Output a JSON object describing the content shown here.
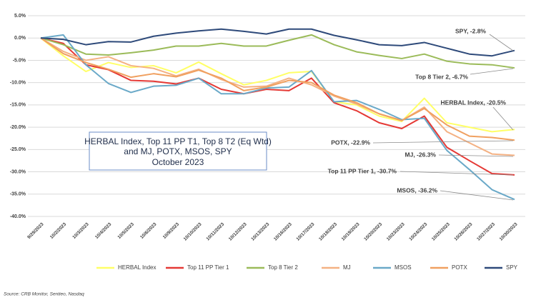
{
  "chart_data": {
    "type": "line",
    "title": [
      "HERBAL Index, Top 11 PP T1, Top 8 T2  (Eq Wtd)",
      "and MJ, POTX, MSOS, SPY",
      "October 2023"
    ],
    "source": "Source: CRB Monitor, Sentieo, Nasdaq",
    "categories": [
      "9/29/2023",
      "10/2/2023",
      "10/3/2023",
      "10/4/2023",
      "10/5/2023",
      "10/6/2023",
      "10/9/2023",
      "10/10/2023",
      "10/11/2023",
      "10/12/2023",
      "10/13/2023",
      "10/16/2023",
      "10/17/2023",
      "10/18/2023",
      "10/19/2023",
      "10/20/2023",
      "10/23/2023",
      "10/24/2023",
      "10/25/2023",
      "10/26/2023",
      "10/27/2023",
      "10/30/2023"
    ],
    "ylim": [
      -40,
      5
    ],
    "yticks": [
      {
        "value": 5,
        "label": "5.0%"
      },
      {
        "value": 0,
        "label": "0.0%"
      },
      {
        "value": -5,
        "label": "-5.0%"
      },
      {
        "value": -10,
        "label": "-10.0%"
      },
      {
        "value": -15,
        "label": "-15.0%"
      },
      {
        "value": -20,
        "label": "-20.0%"
      },
      {
        "value": -25,
        "label": "-25.0%"
      },
      {
        "value": -30,
        "label": "-30.0%"
      },
      {
        "value": -35,
        "label": "-35.0%"
      },
      {
        "value": -40,
        "label": "-40.0%"
      }
    ],
    "grid": true,
    "series": [
      {
        "name": "HERBAL Index",
        "color": "#ffff66",
        "values": [
          0,
          -4.0,
          -7.5,
          -5.5,
          -6.6,
          -6.2,
          -7.8,
          -5.4,
          -8.0,
          -10.5,
          -9.5,
          -7.8,
          -7.5,
          -14.3,
          -15.0,
          -17.5,
          -18.7,
          -13.5,
          -19.0,
          -20.0,
          -21.0,
          -20.5
        ]
      },
      {
        "name": "Top 11 PP Tier 1",
        "color": "#e53935",
        "values": [
          0,
          -1.2,
          -6.0,
          -7.1,
          -9.5,
          -9.7,
          -10.3,
          -9.0,
          -11.5,
          -12.5,
          -11.5,
          -11.8,
          -9.0,
          -14.5,
          -16.3,
          -19.0,
          -20.3,
          -17.5,
          -24.5,
          -27.5,
          -30.4,
          -30.7
        ]
      },
      {
        "name": "Top 8 Tier 2",
        "color": "#9bbb59",
        "values": [
          0,
          -1.5,
          -3.6,
          -3.8,
          -3.3,
          -2.7,
          -1.8,
          -1.8,
          -1.2,
          -1.8,
          -1.8,
          -0.5,
          0.7,
          -1.5,
          -3.1,
          -3.9,
          -4.6,
          -3.6,
          -5.2,
          -5.8,
          -6.0,
          -6.7
        ]
      },
      {
        "name": "MJ",
        "color": "#f4b183",
        "values": [
          0,
          -3.0,
          -5.0,
          -4.2,
          -6.2,
          -6.8,
          -8.5,
          -7.0,
          -9.3,
          -11.0,
          -10.8,
          -9.0,
          -10.5,
          -13.0,
          -14.8,
          -17.0,
          -18.5,
          -15.5,
          -21.0,
          -23.5,
          -26.0,
          -26.3
        ]
      },
      {
        "name": "MSOS",
        "color": "#6aa9c8",
        "values": [
          0,
          0.7,
          -6.0,
          -10.2,
          -12.2,
          -10.8,
          -10.6,
          -9.0,
          -12.5,
          -12.5,
          -11.2,
          -11.0,
          -7.3,
          -14.3,
          -14.0,
          -16.0,
          -18.3,
          -18.0,
          -25.2,
          -29.5,
          -34.0,
          -36.2
        ]
      },
      {
        "name": "POTX",
        "color": "#f0a060",
        "values": [
          0,
          -3.5,
          -5.5,
          -7.0,
          -8.8,
          -8.0,
          -8.7,
          -7.2,
          -9.0,
          -11.8,
          -11.0,
          -9.5,
          -10.0,
          -12.8,
          -14.5,
          -17.0,
          -18.5,
          -15.8,
          -19.5,
          -22.0,
          -22.3,
          -22.9
        ]
      },
      {
        "name": "SPY",
        "color": "#2e4a7a",
        "values": [
          0,
          -0.3,
          -1.5,
          -0.8,
          -0.9,
          0.4,
          1.1,
          1.6,
          2.0,
          1.5,
          0.9,
          2.0,
          2.0,
          0.6,
          -0.4,
          -1.5,
          -1.7,
          -1.0,
          -2.3,
          -3.6,
          -4.0,
          -2.8
        ]
      }
    ],
    "annotations": [
      "SPY, -2.8%",
      "Top 8 Tier 2, -6.7%",
      "HERBAL Index, -20.5%",
      "POTX, -22.9%",
      "MJ, -26.3%",
      "Top 11 PP Tier 1, -30.7%",
      "MSOS, -36.2%"
    ]
  }
}
